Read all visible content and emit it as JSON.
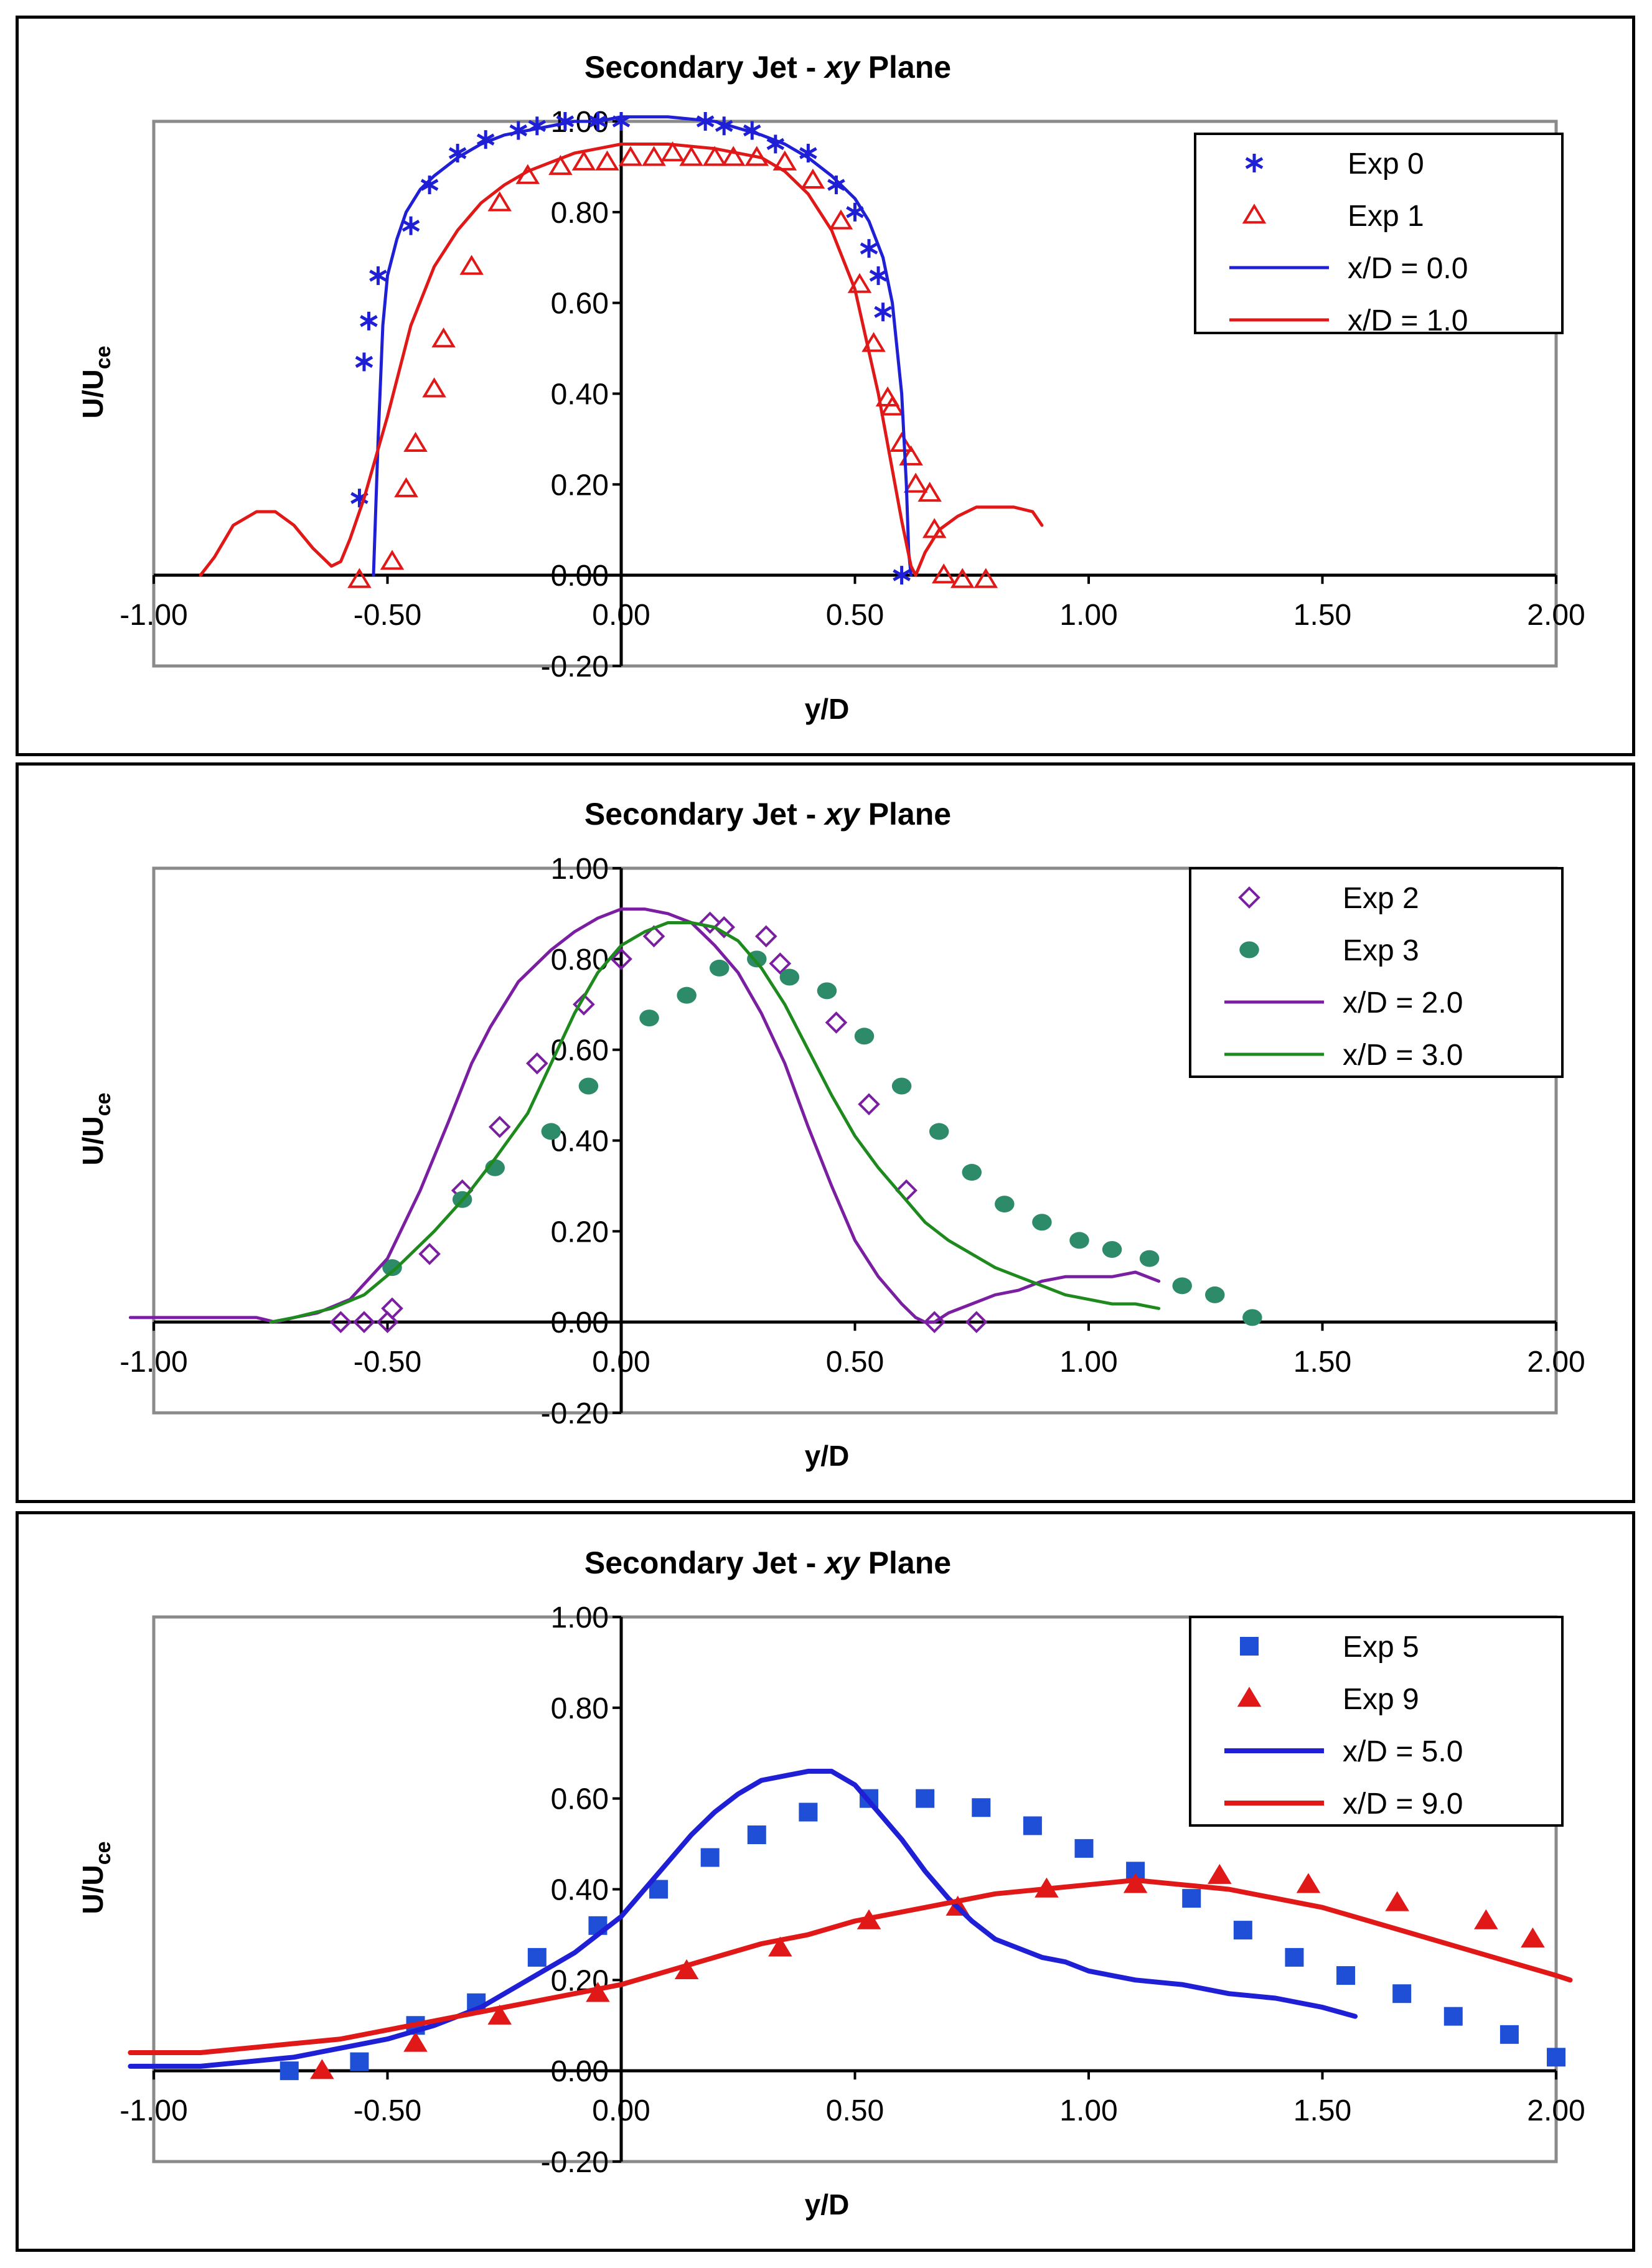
{
  "chart_data": [
    {
      "type": "line+scatter",
      "title_prefix": "Secondary Jet - ",
      "title_italic": "xy",
      "title_suffix": " Plane",
      "xlabel": "y/D",
      "ylabel_main": "U/U",
      "ylabel_sub": "ce",
      "xlim": [
        -1.0,
        2.0
      ],
      "ylim": [
        -0.2,
        1.0
      ],
      "xticks": [
        "-1.00",
        "-0.50",
        "0.00",
        "0.50",
        "1.00",
        "1.50",
        "2.00"
      ],
      "yticks": [
        "-0.20",
        "0.00",
        "0.20",
        "0.40",
        "0.60",
        "0.80",
        "1.00"
      ],
      "series": [
        {
          "name": "Exp 0",
          "kind": "marker",
          "marker": "asterisk",
          "color": "#1f1fd6",
          "x": [
            -0.56,
            -0.55,
            -0.54,
            -0.52,
            -0.45,
            -0.41,
            -0.35,
            -0.29,
            -0.22,
            -0.18,
            -0.12,
            -0.05,
            0.0,
            0.18,
            0.22,
            0.28,
            0.33,
            0.4,
            0.46,
            0.5,
            0.53,
            0.55,
            0.56,
            0.6
          ],
          "y": [
            0.17,
            0.47,
            0.56,
            0.66,
            0.77,
            0.86,
            0.93,
            0.96,
            0.98,
            0.99,
            1.0,
            1.0,
            1.0,
            1.0,
            0.99,
            0.98,
            0.95,
            0.93,
            0.86,
            0.8,
            0.72,
            0.66,
            0.58,
            0.0
          ]
        },
        {
          "name": "Exp 1",
          "kind": "marker",
          "marker": "triangle-open",
          "color": "#e01818",
          "x": [
            -0.56,
            -0.49,
            -0.46,
            -0.44,
            -0.4,
            -0.38,
            -0.32,
            -0.26,
            -0.2,
            -0.13,
            -0.08,
            -0.03,
            0.02,
            0.07,
            0.11,
            0.15,
            0.2,
            0.24,
            0.29,
            0.35,
            0.41,
            0.47,
            0.51,
            0.54,
            0.57,
            0.58,
            0.6,
            0.62,
            0.63,
            0.66,
            0.67,
            0.69,
            0.73,
            0.78
          ],
          "y": [
            -0.01,
            0.03,
            0.19,
            0.29,
            0.41,
            0.52,
            0.68,
            0.82,
            0.88,
            0.9,
            0.91,
            0.91,
            0.92,
            0.92,
            0.93,
            0.92,
            0.92,
            0.92,
            0.92,
            0.91,
            0.87,
            0.78,
            0.64,
            0.51,
            0.39,
            0.37,
            0.29,
            0.26,
            0.2,
            0.18,
            0.1,
            0.0,
            -0.01,
            -0.01
          ]
        },
        {
          "name": "x/D = 0.0",
          "kind": "line",
          "color": "#1f1fd6",
          "x": [
            -0.53,
            -0.52,
            -0.51,
            -0.5,
            -0.48,
            -0.46,
            -0.43,
            -0.4,
            -0.35,
            -0.3,
            -0.25,
            -0.2,
            -0.15,
            -0.1,
            -0.05,
            0.0,
            0.1,
            0.2,
            0.3,
            0.35,
            0.4,
            0.45,
            0.5,
            0.53,
            0.56,
            0.58,
            0.59,
            0.6,
            0.61,
            0.615,
            0.62
          ],
          "y": [
            0.0,
            0.3,
            0.55,
            0.66,
            0.74,
            0.8,
            0.85,
            0.88,
            0.92,
            0.95,
            0.97,
            0.98,
            0.99,
            1.0,
            1.0,
            1.01,
            1.01,
            1.0,
            0.97,
            0.95,
            0.92,
            0.88,
            0.83,
            0.78,
            0.7,
            0.6,
            0.5,
            0.4,
            0.2,
            0.05,
            0.0
          ]
        },
        {
          "name": "x/D = 1.0",
          "kind": "line",
          "color": "#e01818",
          "x": [
            -0.9,
            -0.87,
            -0.83,
            -0.78,
            -0.74,
            -0.7,
            -0.66,
            -0.62,
            -0.6,
            -0.58,
            -0.55,
            -0.5,
            -0.45,
            -0.4,
            -0.35,
            -0.3,
            -0.25,
            -0.2,
            -0.15,
            -0.1,
            -0.05,
            0.0,
            0.1,
            0.2,
            0.3,
            0.35,
            0.4,
            0.45,
            0.5,
            0.55,
            0.6,
            0.62,
            0.63,
            0.65,
            0.68,
            0.72,
            0.76,
            0.8,
            0.84,
            0.88,
            0.9
          ],
          "y": [
            0.0,
            0.04,
            0.11,
            0.14,
            0.14,
            0.11,
            0.06,
            0.02,
            0.03,
            0.08,
            0.17,
            0.35,
            0.55,
            0.68,
            0.76,
            0.82,
            0.86,
            0.89,
            0.91,
            0.93,
            0.94,
            0.95,
            0.95,
            0.94,
            0.92,
            0.89,
            0.84,
            0.76,
            0.63,
            0.4,
            0.12,
            0.02,
            0.0,
            0.05,
            0.1,
            0.13,
            0.15,
            0.15,
            0.15,
            0.14,
            0.11
          ]
        }
      ]
    },
    {
      "type": "line+scatter",
      "title_prefix": "Secondary Jet - ",
      "title_italic": "xy",
      "title_suffix": " Plane",
      "xlabel": "y/D",
      "ylabel_main": "U/U",
      "ylabel_sub": "ce",
      "xlim": [
        -1.0,
        2.0
      ],
      "ylim": [
        -0.2,
        1.0
      ],
      "xticks": [
        "-1.00",
        "-0.50",
        "0.00",
        "0.50",
        "1.00",
        "1.50",
        "2.00"
      ],
      "yticks": [
        "-0.20",
        "0.00",
        "0.20",
        "0.40",
        "0.60",
        "0.80",
        "1.00"
      ],
      "series": [
        {
          "name": "Exp 2",
          "kind": "marker",
          "marker": "diamond-open",
          "color": "#7b1fa2",
          "x": [
            -0.6,
            -0.55,
            -0.5,
            -0.49,
            -0.41,
            -0.34,
            -0.26,
            -0.18,
            -0.08,
            0.0,
            0.07,
            0.19,
            0.22,
            0.31,
            0.34,
            0.46,
            0.53,
            0.61,
            0.67,
            0.76
          ],
          "y": [
            0.0,
            0.0,
            0.0,
            0.03,
            0.15,
            0.29,
            0.43,
            0.57,
            0.7,
            0.8,
            0.85,
            0.88,
            0.87,
            0.85,
            0.79,
            0.66,
            0.48,
            0.29,
            0.0,
            0.0
          ],
          "note": "some markers overlap"
        },
        {
          "name": "Exp 3",
          "kind": "marker",
          "marker": "circle-filled",
          "color": "#2e8b6a",
          "x": [
            -0.49,
            -0.34,
            -0.27,
            -0.15,
            -0.07,
            0.06,
            0.14,
            0.21,
            0.29,
            0.36,
            0.44,
            0.52,
            0.6,
            0.68,
            0.75,
            0.82,
            0.9,
            0.98,
            1.05,
            1.13,
            1.2,
            1.27,
            1.35
          ],
          "y": [
            0.12,
            0.27,
            0.34,
            0.42,
            0.52,
            0.67,
            0.72,
            0.78,
            0.8,
            0.76,
            0.73,
            0.63,
            0.52,
            0.42,
            0.33,
            0.26,
            0.22,
            0.18,
            0.16,
            0.14,
            0.08,
            0.06,
            0.01
          ]
        },
        {
          "name": "x/D = 2.0",
          "kind": "line",
          "color": "#7b1fa2",
          "x": [
            -1.05,
            -0.85,
            -0.78,
            -0.74,
            -0.7,
            -0.65,
            -0.58,
            -0.5,
            -0.43,
            -0.37,
            -0.32,
            -0.28,
            -0.22,
            -0.15,
            -0.1,
            -0.05,
            0.0,
            0.05,
            0.1,
            0.15,
            0.2,
            0.25,
            0.3,
            0.35,
            0.4,
            0.45,
            0.5,
            0.55,
            0.6,
            0.63,
            0.65,
            0.67,
            0.7,
            0.75,
            0.8,
            0.85,
            0.9,
            0.95,
            1.0,
            1.05,
            1.1,
            1.15
          ],
          "y": [
            0.01,
            0.01,
            0.01,
            0.0,
            0.01,
            0.02,
            0.05,
            0.14,
            0.29,
            0.44,
            0.57,
            0.65,
            0.75,
            0.82,
            0.86,
            0.89,
            0.91,
            0.91,
            0.9,
            0.88,
            0.83,
            0.77,
            0.68,
            0.57,
            0.43,
            0.3,
            0.18,
            0.1,
            0.04,
            0.01,
            0.0,
            0.0,
            0.02,
            0.04,
            0.06,
            0.07,
            0.09,
            0.1,
            0.1,
            0.1,
            0.11,
            0.09
          ]
        },
        {
          "name": "x/D = 3.0",
          "kind": "line",
          "color": "#1e8a1e",
          "x": [
            -0.75,
            -0.7,
            -0.62,
            -0.55,
            -0.48,
            -0.4,
            -0.33,
            -0.27,
            -0.2,
            -0.15,
            -0.1,
            -0.05,
            0.0,
            0.05,
            0.1,
            0.15,
            0.2,
            0.25,
            0.3,
            0.35,
            0.4,
            0.45,
            0.5,
            0.55,
            0.6,
            0.65,
            0.7,
            0.75,
            0.8,
            0.85,
            0.9,
            0.95,
            1.0,
            1.05,
            1.1,
            1.15
          ],
          "y": [
            0.0,
            0.01,
            0.03,
            0.06,
            0.12,
            0.2,
            0.28,
            0.36,
            0.46,
            0.57,
            0.68,
            0.77,
            0.83,
            0.86,
            0.88,
            0.88,
            0.87,
            0.84,
            0.78,
            0.7,
            0.6,
            0.5,
            0.41,
            0.34,
            0.28,
            0.22,
            0.18,
            0.15,
            0.12,
            0.1,
            0.08,
            0.06,
            0.05,
            0.04,
            0.04,
            0.03
          ]
        }
      ]
    },
    {
      "type": "line+scatter",
      "title_prefix": "Secondary Jet - ",
      "title_italic": "xy",
      "title_suffix": " Plane",
      "xlabel": "y/D",
      "ylabel_main": "U/U",
      "ylabel_sub": "ce",
      "xlim": [
        -1.0,
        2.0
      ],
      "ylim": [
        -0.2,
        1.0
      ],
      "xticks": [
        "-1.00",
        "-0.50",
        "0.00",
        "0.50",
        "1.00",
        "1.50",
        "2.00"
      ],
      "yticks": [
        "-0.20",
        "0.00",
        "0.20",
        "0.40",
        "0.60",
        "0.80",
        "1.00"
      ],
      "series": [
        {
          "name": "Exp 5",
          "kind": "marker",
          "marker": "square-filled",
          "color": "#1f4fd6",
          "x": [
            -0.71,
            -0.56,
            -0.44,
            -0.31,
            -0.18,
            -0.05,
            0.08,
            0.19,
            0.29,
            0.4,
            0.53,
            0.65,
            0.77,
            0.88,
            0.99,
            1.1,
            1.22,
            1.33,
            1.44,
            1.55,
            1.67,
            1.78,
            1.9,
            2.0
          ],
          "y": [
            0.0,
            0.02,
            0.1,
            0.15,
            0.25,
            0.32,
            0.4,
            0.47,
            0.52,
            0.57,
            0.6,
            0.6,
            0.58,
            0.54,
            0.49,
            0.44,
            0.38,
            0.31,
            0.25,
            0.21,
            0.17,
            0.12,
            0.08,
            0.03
          ]
        },
        {
          "name": "Exp 9",
          "kind": "marker",
          "marker": "triangle-filled",
          "color": "#e01818",
          "x": [
            -0.64,
            -0.44,
            -0.26,
            -0.05,
            0.14,
            0.34,
            0.53,
            0.72,
            0.91,
            1.1,
            1.28,
            1.47,
            1.66,
            1.85,
            1.95
          ],
          "y": [
            0.0,
            0.06,
            0.12,
            0.17,
            0.22,
            0.27,
            0.33,
            0.36,
            0.4,
            0.41,
            0.43,
            0.41,
            0.37,
            0.33,
            0.29
          ]
        },
        {
          "name": "x/D = 5.0",
          "kind": "line",
          "color": "#1f1fd6",
          "x": [
            -1.05,
            -0.9,
            -0.8,
            -0.7,
            -0.6,
            -0.5,
            -0.4,
            -0.3,
            -0.2,
            -0.1,
            0.0,
            0.05,
            0.1,
            0.15,
            0.2,
            0.25,
            0.3,
            0.35,
            0.4,
            0.43,
            0.45,
            0.5,
            0.55,
            0.6,
            0.65,
            0.7,
            0.75,
            0.8,
            0.85,
            0.9,
            0.95,
            1.0,
            1.1,
            1.2,
            1.3,
            1.4,
            1.5,
            1.57
          ],
          "y": [
            0.01,
            0.01,
            0.02,
            0.03,
            0.05,
            0.07,
            0.1,
            0.14,
            0.2,
            0.26,
            0.34,
            0.4,
            0.46,
            0.52,
            0.57,
            0.61,
            0.64,
            0.65,
            0.66,
            0.66,
            0.66,
            0.63,
            0.57,
            0.51,
            0.44,
            0.38,
            0.33,
            0.29,
            0.27,
            0.25,
            0.24,
            0.22,
            0.2,
            0.19,
            0.17,
            0.16,
            0.14,
            0.12
          ]
        },
        {
          "name": "x/D = 9.0",
          "kind": "line",
          "color": "#e01818",
          "x": [
            -1.05,
            -0.9,
            -0.8,
            -0.7,
            -0.6,
            -0.5,
            -0.4,
            -0.3,
            -0.2,
            -0.1,
            0.0,
            0.1,
            0.2,
            0.3,
            0.4,
            0.5,
            0.6,
            0.7,
            0.8,
            0.9,
            1.0,
            1.1,
            1.2,
            1.3,
            1.4,
            1.5,
            1.6,
            1.7,
            1.8,
            1.9,
            2.0,
            2.03
          ],
          "y": [
            0.04,
            0.04,
            0.05,
            0.06,
            0.07,
            0.09,
            0.11,
            0.13,
            0.15,
            0.17,
            0.19,
            0.22,
            0.25,
            0.28,
            0.3,
            0.33,
            0.35,
            0.37,
            0.39,
            0.4,
            0.41,
            0.42,
            0.41,
            0.4,
            0.38,
            0.36,
            0.33,
            0.3,
            0.27,
            0.24,
            0.21,
            0.2
          ]
        }
      ]
    }
  ]
}
